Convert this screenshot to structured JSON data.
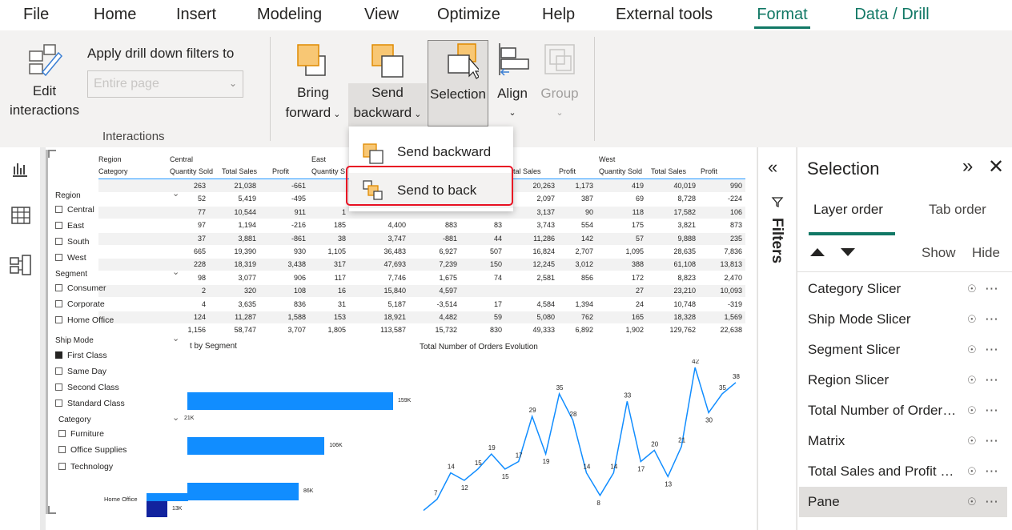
{
  "menu_tabs": [
    {
      "label": "File"
    },
    {
      "label": "Home"
    },
    {
      "label": "Insert"
    },
    {
      "label": "Modeling"
    },
    {
      "label": "View"
    },
    {
      "label": "Optimize"
    },
    {
      "label": "Help"
    },
    {
      "label": "External tools"
    },
    {
      "label": "Format"
    },
    {
      "label": "Data / Drill"
    }
  ],
  "ribbon": {
    "edit_interactions": [
      "Edit",
      "interactions"
    ],
    "apply_drill_label": "Apply drill down filters to",
    "apply_drill_placeholder": "Entire page",
    "group_interactions": "Interactions",
    "bring_forward": [
      "Bring",
      "forward"
    ],
    "send_backward": [
      "Send",
      "backward"
    ],
    "selection": "Selection",
    "align": "Align",
    "group": "Group"
  },
  "dropdown": {
    "item1": "Send backward",
    "item2": "Send to back"
  },
  "slicers": {
    "region": {
      "title": "Region",
      "items": [
        "Central",
        "East",
        "South",
        "West"
      ]
    },
    "segment": {
      "title": "Segment",
      "items": [
        "Consumer",
        "Corporate",
        "Home Office"
      ]
    },
    "ship_mode": {
      "title": "Ship Mode",
      "items": [
        "First Class",
        "Same Day",
        "Second Class",
        "Standard Class"
      ]
    },
    "category": {
      "title": "Category",
      "items": [
        "Furniture",
        "Office Supplies",
        "Technology"
      ]
    }
  },
  "matrix": {
    "row_header_1": "Region",
    "row_header_2": "Category",
    "regions": [
      "Central",
      "East",
      "West"
    ],
    "cols": [
      "Quantity Sold",
      "Total Sales",
      "Profit"
    ],
    "east_cols": [
      "Quantity S"
    ],
    "south_cols": [
      "otal Sales",
      "Profit"
    ],
    "rows": [
      [
        "263",
        "21,038",
        "-661",
        "",
        "",
        "",
        "",
        "20,263",
        "1,173",
        "419",
        "40,019",
        "990"
      ],
      [
        "52",
        "5,419",
        "-495",
        "",
        "",
        "",
        "",
        "2,097",
        "387",
        "69",
        "8,728",
        "-224"
      ],
      [
        "77",
        "10,544",
        "911",
        "1",
        "",
        "",
        "",
        "3,137",
        "90",
        "118",
        "17,582",
        "106"
      ],
      [
        "97",
        "1,194",
        "-216",
        "185",
        "4,400",
        "883",
        "83",
        "3,743",
        "554",
        "175",
        "3,821",
        "873"
      ],
      [
        "37",
        "3,881",
        "-861",
        "38",
        "3,747",
        "-881",
        "44",
        "11,286",
        "142",
        "57",
        "9,888",
        "235"
      ],
      [
        "665",
        "19,390",
        "930",
        "1,105",
        "36,483",
        "6,927",
        "507",
        "16,824",
        "2,707",
        "1,095",
        "28,635",
        "7,836"
      ],
      [
        "228",
        "18,319",
        "3,438",
        "317",
        "47,693",
        "7,239",
        "150",
        "12,245",
        "3,012",
        "388",
        "61,108",
        "13,813"
      ],
      [
        "98",
        "3,077",
        "906",
        "117",
        "7,746",
        "1,675",
        "74",
        "2,581",
        "856",
        "172",
        "8,823",
        "2,470"
      ],
      [
        "2",
        "320",
        "108",
        "16",
        "15,840",
        "4,597",
        "",
        "",
        "",
        "27",
        "23,210",
        "10,093"
      ],
      [
        "4",
        "3,635",
        "836",
        "31",
        "5,187",
        "-3,514",
        "17",
        "4,584",
        "1,394",
        "24",
        "10,748",
        "-319"
      ],
      [
        "124",
        "11,287",
        "1,588",
        "153",
        "18,921",
        "4,482",
        "59",
        "5,080",
        "762",
        "165",
        "18,328",
        "1,569"
      ],
      [
        "1,156",
        "58,747",
        "3,707",
        "1,805",
        "113,587",
        "15,732",
        "830",
        "49,333",
        "6,892",
        "1,902",
        "129,762",
        "22,638"
      ]
    ]
  },
  "bar_chart_title": "t by Segment",
  "line_chart_title": "Total Number of Orders Evolution",
  "chart_data": [
    {
      "type": "bar",
      "title": "t by Segment",
      "categories": [
        "",
        "",
        "Home Office"
      ],
      "values": [
        159,
        106,
        86
      ],
      "labels": [
        "159K",
        "106K",
        "86K"
      ],
      "secondary": {
        "values": [
          13
        ],
        "labels": [
          "13K"
        ]
      },
      "extra_label": "21K"
    },
    {
      "type": "line",
      "title": "Total Number of Orders Evolution",
      "values": [
        4,
        7,
        14,
        12,
        15,
        19,
        15,
        17,
        29,
        19,
        35,
        28,
        14,
        8,
        14,
        33,
        17,
        20,
        13,
        21,
        42,
        30,
        35,
        38
      ],
      "ylim": [
        0,
        42
      ]
    }
  ],
  "filters_label": "Filters",
  "selection_pane": {
    "title": "Selection",
    "tab_layer": "Layer order",
    "tab_tab": "Tab order",
    "show": "Show",
    "hide": "Hide",
    "layers": [
      {
        "name": "Category Slicer"
      },
      {
        "name": "Ship Mode Slicer"
      },
      {
        "name": "Segment Slicer"
      },
      {
        "name": "Region Slicer"
      },
      {
        "name": "Total Number of Orders Evolution"
      },
      {
        "name": "Matrix"
      },
      {
        "name": "Total Sales and Profit by Segment"
      },
      {
        "name": "Pane"
      }
    ]
  },
  "colors": {
    "accent": "#117865",
    "bar": "#118dff",
    "bar_dark": "#12239e",
    "highlight": "#e81123"
  }
}
